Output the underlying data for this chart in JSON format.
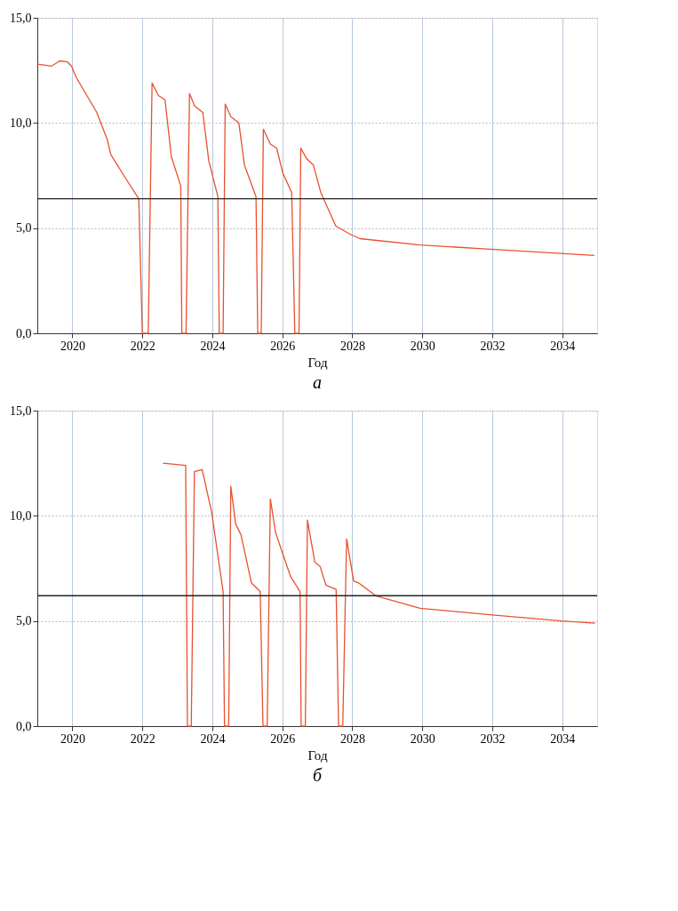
{
  "chart_data": [
    {
      "type": "line",
      "xlabel": "Год",
      "annotations": [
        "а"
      ],
      "xlim": [
        2019,
        2035
      ],
      "ylim": [
        0,
        15
      ],
      "xticks": [
        2020,
        2022,
        2024,
        2026,
        2028,
        2030,
        2032,
        2034
      ],
      "yticks": [
        {
          "value": 0,
          "label": "0,0"
        },
        {
          "value": 5,
          "label": "5,0"
        },
        {
          "value": 10,
          "label": "10,0"
        },
        {
          "value": 15,
          "label": "15,0"
        }
      ],
      "grid": true,
      "marker": "none",
      "line_style": "solid",
      "ref_lines": [
        {
          "axis": "y",
          "value": 6.4,
          "color": "#222222"
        }
      ],
      "series": [
        {
          "color": "#e8512f",
          "x": [
            2019.0,
            2019.4,
            2019.64,
            2019.86,
            2019.98,
            2020.1,
            2020.7,
            2021.0,
            2021.1,
            2021.55,
            2021.9,
            2022.0,
            2022.17,
            2022.28,
            2022.46,
            2022.65,
            2022.83,
            2023.1,
            2023.13,
            2023.25,
            2023.35,
            2023.5,
            2023.73,
            2023.9,
            2024.16,
            2024.2,
            2024.31,
            2024.37,
            2024.53,
            2024.76,
            2024.92,
            2025.25,
            2025.3,
            2025.4,
            2025.46,
            2025.66,
            2025.84,
            2026.02,
            2026.27,
            2026.36,
            2026.48,
            2026.53,
            2026.7,
            2026.89,
            2027.1,
            2027.53,
            2027.95,
            2028.22,
            2029.94,
            2031.93,
            2034.92
          ],
          "values": [
            12.8,
            12.7,
            12.95,
            12.9,
            12.7,
            12.2,
            10.5,
            9.2,
            8.5,
            7.3,
            6.4,
            0,
            0,
            11.9,
            11.3,
            11.1,
            8.4,
            7.0,
            0,
            0,
            11.4,
            10.8,
            10.5,
            8.2,
            6.5,
            0,
            0,
            10.9,
            10.3,
            10.0,
            8.0,
            6.5,
            0,
            0,
            9.7,
            9.0,
            8.8,
            7.6,
            6.7,
            0,
            0,
            8.8,
            8.3,
            8.0,
            6.7,
            5.1,
            4.7,
            4.5,
            4.2,
            4.0,
            3.7
          ]
        }
      ]
    },
    {
      "type": "line",
      "xlabel": "Год",
      "annotations": [
        "б"
      ],
      "xlim": [
        2019,
        2035
      ],
      "ylim": [
        0,
        15
      ],
      "xticks": [
        2020,
        2022,
        2024,
        2026,
        2028,
        2030,
        2032,
        2034
      ],
      "yticks": [
        {
          "value": 0,
          "label": "0,0"
        },
        {
          "value": 5,
          "label": "5,0"
        },
        {
          "value": 10,
          "label": "10,0"
        },
        {
          "value": 15,
          "label": "15,0"
        }
      ],
      "grid": true,
      "marker": "none",
      "line_style": "solid",
      "ref_lines": [
        {
          "axis": "y",
          "value": 6.2,
          "color": "#222222"
        }
      ],
      "series": [
        {
          "color": "#e8512f",
          "x": [
            2022.59,
            2023.24,
            2023.29,
            2023.4,
            2023.49,
            2023.71,
            2023.98,
            2024.31,
            2024.35,
            2024.47,
            2024.53,
            2024.67,
            2024.82,
            2025.12,
            2025.37,
            2025.45,
            2025.57,
            2025.66,
            2025.81,
            2026.24,
            2026.51,
            2026.54,
            2026.66,
            2026.72,
            2026.93,
            2027.08,
            2027.25,
            2027.54,
            2027.61,
            2027.73,
            2027.84,
            2028.04,
            2028.19,
            2028.67,
            2029.94,
            2031.93,
            2033.98,
            2034.94
          ],
          "values": [
            12.5,
            12.4,
            0,
            0,
            12.1,
            12.2,
            10.2,
            6.4,
            0,
            0,
            11.4,
            9.6,
            9.1,
            6.8,
            6.4,
            0,
            0,
            10.8,
            9.2,
            7.1,
            6.4,
            0,
            0,
            9.8,
            7.8,
            7.6,
            6.7,
            6.5,
            0,
            0,
            8.9,
            6.9,
            6.8,
            6.2,
            5.6,
            5.3,
            5.0,
            4.9
          ]
        }
      ]
    }
  ]
}
